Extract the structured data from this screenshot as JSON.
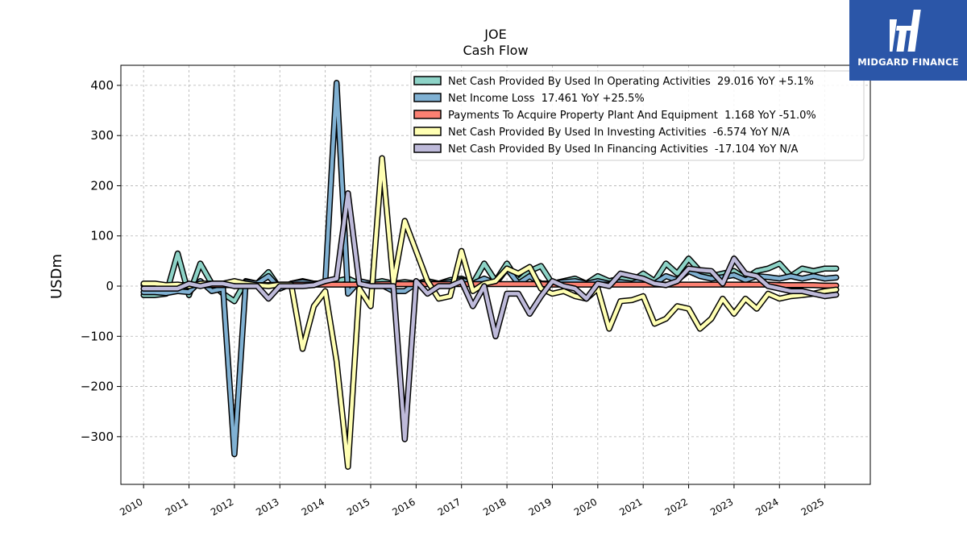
{
  "logo": {
    "text": "MIDGARD FINANCE",
    "icon": "midgard-logo-icon",
    "color": "#2b56a8"
  },
  "chart_data": {
    "type": "line",
    "title": "JOE",
    "subtitle": "Cash Flow",
    "ylabel": "USDm",
    "xlabel": "",
    "xlim": [
      2009.5,
      2026.0
    ],
    "ylim": [
      -395,
      440
    ],
    "yticks": [
      -300,
      -200,
      -100,
      0,
      100,
      200,
      300,
      400
    ],
    "ytick_labels": [
      "−300",
      "−200",
      "−100",
      "0",
      "100",
      "200",
      "300",
      "400"
    ],
    "xticks": [
      2010,
      2011,
      2012,
      2013,
      2014,
      2015,
      2016,
      2017,
      2018,
      2019,
      2020,
      2021,
      2022,
      2023,
      2024,
      2025
    ],
    "xtick_labels": [
      "2010",
      "2011",
      "2012",
      "2013",
      "2014",
      "2015",
      "2016",
      "2017",
      "2018",
      "2019",
      "2020",
      "2021",
      "2022",
      "2023",
      "2024",
      "2025"
    ],
    "grid": true,
    "legend_position": "top-right",
    "x": [
      2010.0,
      2010.25,
      2010.5,
      2010.75,
      2011.0,
      2011.25,
      2011.5,
      2011.75,
      2012.0,
      2012.25,
      2012.5,
      2012.75,
      2013.0,
      2013.25,
      2013.5,
      2013.75,
      2014.0,
      2014.25,
      2014.5,
      2014.75,
      2015.0,
      2015.25,
      2015.5,
      2015.75,
      2016.0,
      2016.25,
      2016.5,
      2016.75,
      2017.0,
      2017.25,
      2017.5,
      2017.75,
      2018.0,
      2018.25,
      2018.5,
      2018.75,
      2019.0,
      2019.25,
      2019.5,
      2019.75,
      2020.0,
      2020.25,
      2020.5,
      2020.75,
      2021.0,
      2021.25,
      2021.5,
      2021.75,
      2022.0,
      2022.25,
      2022.5,
      2022.75,
      2023.0,
      2023.25,
      2023.5,
      2023.75,
      2024.0,
      2024.25,
      2024.5,
      2024.75,
      2025.0,
      2025.25
    ],
    "series": [
      {
        "name": "Net Cash Provided By Used In Operating Activities",
        "legend": "Net Cash Provided By Used In Operating Activities  29.016 YoY +5.1%",
        "color": "#8dd3c7",
        "values": [
          -18,
          -18,
          -15,
          65,
          -18,
          45,
          5,
          -15,
          -30,
          10,
          5,
          28,
          -5,
          5,
          10,
          5,
          5,
          10,
          15,
          5,
          5,
          10,
          5,
          8,
          5,
          10,
          5,
          12,
          15,
          5,
          45,
          10,
          45,
          10,
          30,
          40,
          5,
          10,
          15,
          5,
          20,
          10,
          15,
          10,
          25,
          10,
          45,
          25,
          55,
          30,
          20,
          25,
          30,
          15,
          30,
          35,
          45,
          20,
          35,
          30,
          35,
          35
        ]
      },
      {
        "name": "Net Income Loss",
        "legend": "Net Income Loss  17.461 YoY +25.5%",
        "color": "#80b1d3",
        "values": [
          -12,
          -12,
          -14,
          -10,
          -12,
          10,
          -10,
          -5,
          -335,
          8,
          5,
          20,
          -5,
          5,
          8,
          5,
          5,
          405,
          -15,
          10,
          5,
          2,
          -10,
          -10,
          5,
          5,
          5,
          8,
          12,
          5,
          15,
          5,
          35,
          5,
          20,
          5,
          5,
          8,
          10,
          5,
          10,
          5,
          8,
          5,
          12,
          5,
          20,
          12,
          30,
          20,
          15,
          18,
          22,
          12,
          20,
          18,
          15,
          20,
          15,
          20,
          15,
          17
        ]
      },
      {
        "name": "Payments To Acquire Property Plant And Equipment",
        "legend": "Payments To Acquire Property Plant And Equipment  1.168 YoY -51.0%",
        "color": "#fb8072",
        "values": [
          2,
          2,
          2,
          2,
          2,
          2,
          2,
          2,
          2,
          2,
          2,
          2,
          3,
          3,
          3,
          3,
          3,
          3,
          3,
          3,
          3,
          4,
          4,
          4,
          4,
          4,
          4,
          4,
          4,
          4,
          4,
          4,
          4,
          4,
          4,
          4,
          3,
          3,
          3,
          3,
          3,
          3,
          3,
          3,
          3,
          3,
          3,
          3,
          3,
          3,
          3,
          3,
          3,
          3,
          3,
          3,
          2,
          2,
          2,
          2,
          1,
          1
        ]
      },
      {
        "name": "Net Cash Provided By Used In Investing Activities",
        "legend": "Net Cash Provided By Used In Investing Activities  -6.574 YoY N/A",
        "color": "#ffffb3",
        "values": [
          5,
          5,
          2,
          3,
          0,
          5,
          5,
          5,
          10,
          5,
          2,
          0,
          3,
          3,
          -125,
          -40,
          -10,
          -150,
          -360,
          -5,
          -40,
          255,
          5,
          130,
          70,
          10,
          -25,
          -20,
          70,
          -10,
          5,
          10,
          35,
          25,
          38,
          -5,
          -15,
          -10,
          -20,
          -25,
          -5,
          -85,
          -30,
          -28,
          -20,
          -75,
          -65,
          -40,
          -45,
          -85,
          -65,
          -25,
          -55,
          -25,
          -45,
          -15,
          -25,
          -20,
          -18,
          -15,
          -10,
          -7
        ]
      },
      {
        "name": "Net Cash Provided By Used In Financing Activities",
        "legend": "Net Cash Provided By Used In Financing Activities  -17.104 YoY N/A",
        "color": "#bebada",
        "values": [
          -5,
          -5,
          -5,
          -5,
          5,
          0,
          5,
          5,
          0,
          0,
          0,
          -25,
          0,
          0,
          0,
          2,
          10,
          15,
          185,
          5,
          0,
          0,
          0,
          -305,
          10,
          -15,
          0,
          0,
          10,
          -40,
          0,
          -100,
          -15,
          -15,
          -55,
          -20,
          10,
          0,
          -5,
          -25,
          5,
          0,
          25,
          20,
          15,
          5,
          2,
          10,
          35,
          32,
          30,
          5,
          55,
          25,
          20,
          0,
          -5,
          -10,
          -10,
          -15,
          -20,
          -17
        ]
      }
    ]
  }
}
